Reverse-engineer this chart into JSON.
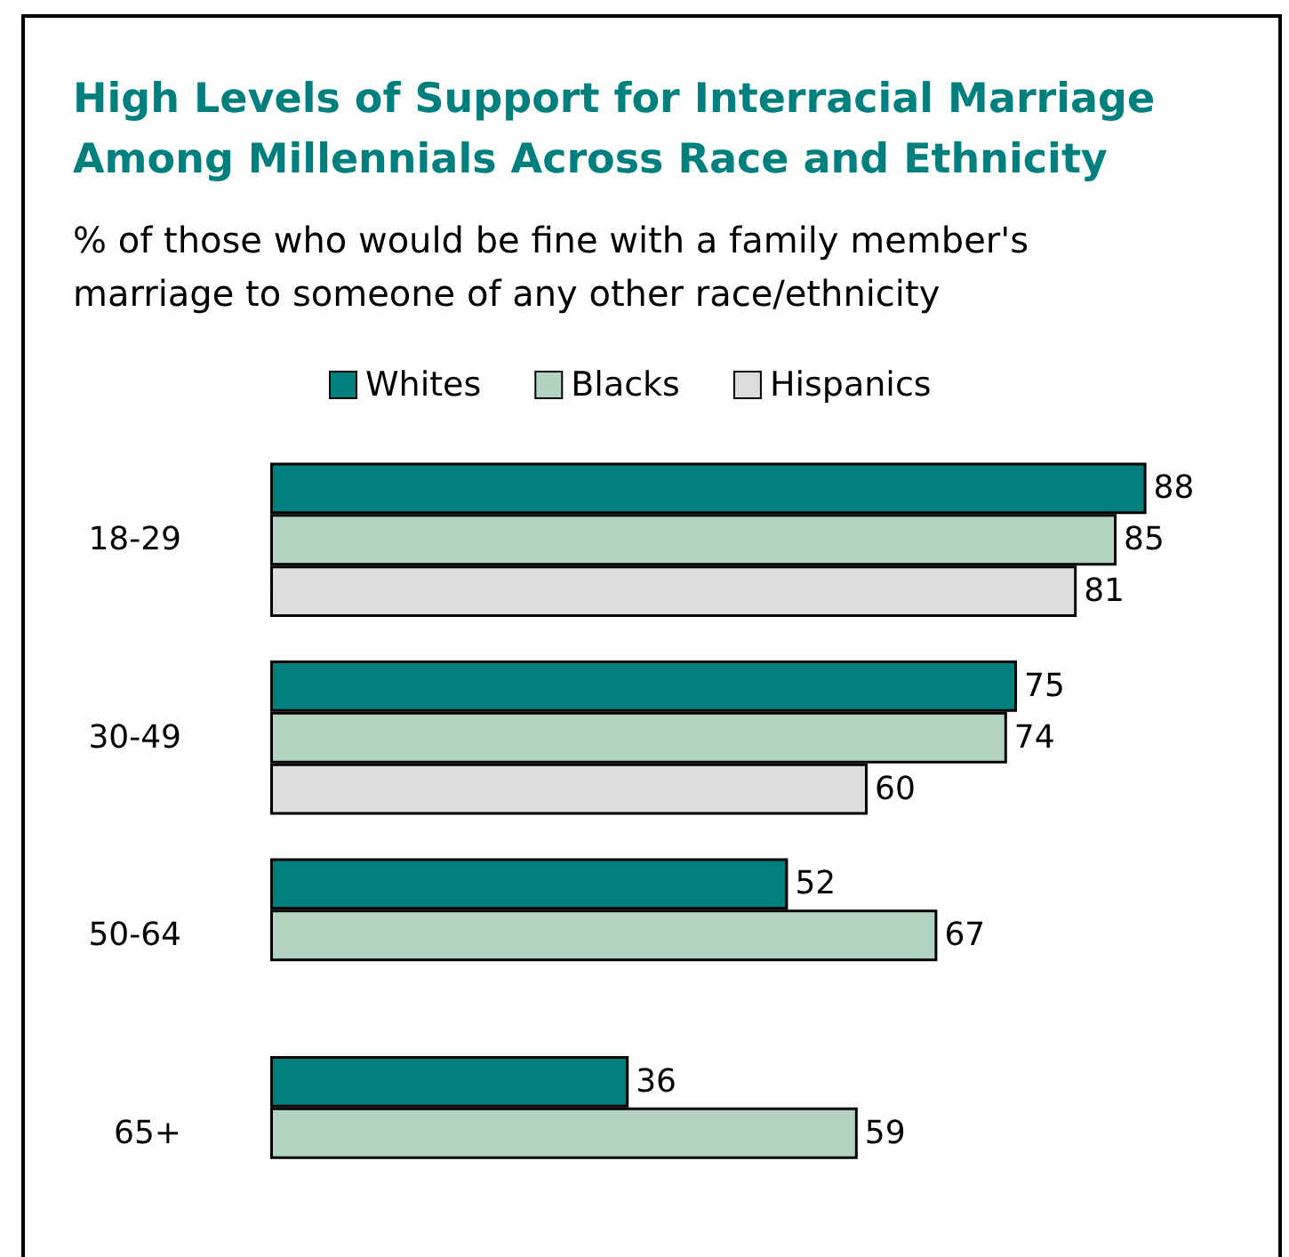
{
  "chart_data": {
    "type": "bar",
    "orientation": "horizontal",
    "title": "High Levels of Support for Interracial Marriage Among Millennials Across Race and Ethnicity",
    "subtitle": "% of those who would be fine with a family member's marriage to someone of any other race/ethnicity",
    "categories": [
      "18-29",
      "30-49",
      "50-64",
      "65+"
    ],
    "series": [
      {
        "name": "Whites",
        "color": "#007f7f",
        "values": [
          88,
          75,
          52,
          36
        ]
      },
      {
        "name": "Blacks",
        "color": "#b3d4c0",
        "values": [
          85,
          74,
          67,
          59
        ]
      },
      {
        "name": "Hispanics",
        "color": "#dcdcdc",
        "values": [
          81,
          60,
          null,
          null
        ]
      }
    ],
    "data_labels": true,
    "legend": "top",
    "grid": false
  }
}
